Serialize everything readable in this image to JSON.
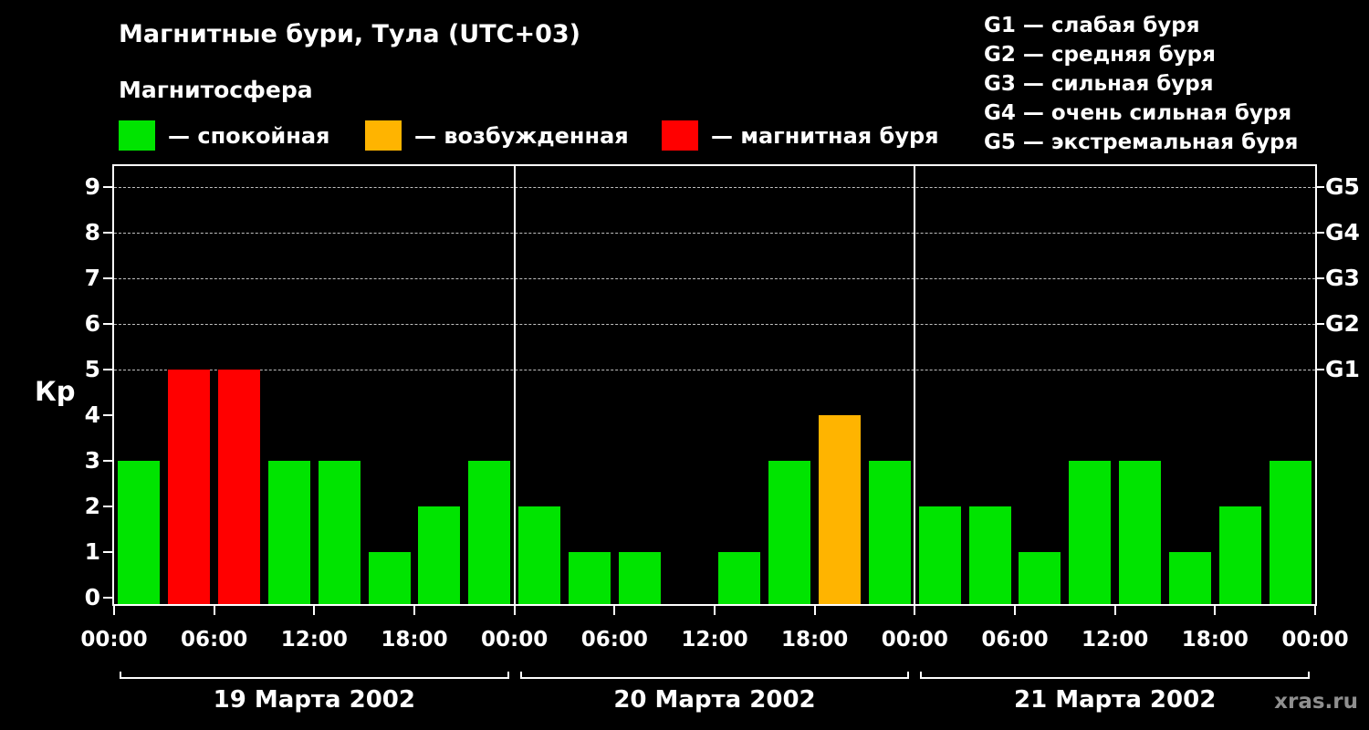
{
  "title": "Магнитные бури, Тула (UTC+03)",
  "subtitle": "Магнитосфера",
  "legend": {
    "items": [
      {
        "name": "quiet",
        "color": "#00e400",
        "label": "— спокойная"
      },
      {
        "name": "unsettled",
        "color": "#ffb400",
        "label": "— возбужденная"
      },
      {
        "name": "storm",
        "color": "#ff0000",
        "label": "— магнитная буря"
      }
    ]
  },
  "g_scale": {
    "items": [
      {
        "label": "G1 — слабая буря"
      },
      {
        "label": "G2 — средняя буря"
      },
      {
        "label": "G3 — сильная буря"
      },
      {
        "label": "G4 — очень сильная буря"
      },
      {
        "label": "G5 — экстремальная буря"
      }
    ]
  },
  "watermark": "xras.ru",
  "chart_data": {
    "type": "bar",
    "title": "Магнитные бури, Тула (UTC+03)",
    "ylabel": "Кр",
    "ylim": [
      0,
      9
    ],
    "yticks": [
      0,
      1,
      2,
      3,
      4,
      5,
      6,
      7,
      8,
      9
    ],
    "gridlines_at": [
      5,
      6,
      7,
      8,
      9
    ],
    "grid": "dashed horizontal at storm levels",
    "bar_interval_hours": 3,
    "right_axis": [
      {
        "value": 5,
        "label": "G1"
      },
      {
        "value": 6,
        "label": "G2"
      },
      {
        "value": 7,
        "label": "G3"
      },
      {
        "value": 8,
        "label": "G4"
      },
      {
        "value": 9,
        "label": "G5"
      }
    ],
    "x_tick_labels": [
      "00:00",
      "06:00",
      "12:00",
      "18:00",
      "00:00",
      "06:00",
      "12:00",
      "18:00",
      "00:00",
      "06:00",
      "12:00",
      "18:00",
      "00:00"
    ],
    "color_map": {
      "quiet": "#00e400",
      "unsettled": "#ffb400",
      "storm": "#ff0000"
    },
    "days": [
      {
        "date": "19 Марта 2002",
        "values": [
          3,
          5,
          5,
          3,
          3,
          1,
          2,
          3
        ],
        "colors": [
          "quiet",
          "storm",
          "storm",
          "quiet",
          "quiet",
          "quiet",
          "quiet",
          "quiet"
        ]
      },
      {
        "date": "20 Марта 2002",
        "values": [
          2,
          1,
          1,
          0,
          1,
          3,
          4,
          3
        ],
        "colors": [
          "quiet",
          "quiet",
          "quiet",
          "quiet",
          "quiet",
          "quiet",
          "unsettled",
          "quiet"
        ]
      },
      {
        "date": "21 Марта 2002",
        "values": [
          2,
          2,
          1,
          3,
          3,
          1,
          2,
          3
        ],
        "colors": [
          "quiet",
          "quiet",
          "quiet",
          "quiet",
          "quiet",
          "quiet",
          "quiet",
          "quiet"
        ]
      }
    ]
  }
}
